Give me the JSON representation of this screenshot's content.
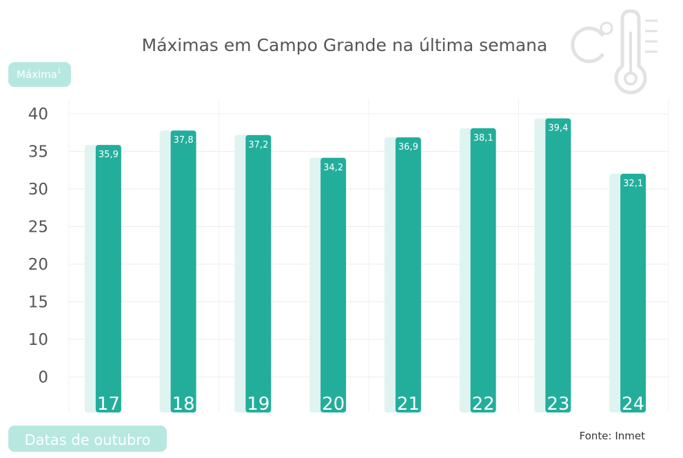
{
  "chart_data": {
    "type": "bar",
    "title": "Máximas em Campo Grande na última semana",
    "ylabel": "Máxima",
    "ylabel_superscript": "1",
    "xlabel": "Datas de outubro",
    "categories": [
      "17",
      "18",
      "19",
      "20",
      "21",
      "22",
      "23",
      "24"
    ],
    "values": [
      35.9,
      37.8,
      37.2,
      34.2,
      36.9,
      38.1,
      39.4,
      32.1
    ],
    "value_labels": [
      "35,9",
      "37,8",
      "37,2",
      "34,2",
      "36,9",
      "38,1",
      "39,4",
      "32,1"
    ],
    "yticks": [
      "40",
      "35",
      "30",
      "25",
      "20",
      "15",
      "10",
      "0"
    ],
    "ylim": [
      0,
      40
    ],
    "grid": true,
    "bar_color": "#23ae9c",
    "shadow_color": "#dff4f1",
    "source": "Fonte: Inmet",
    "icon": "thermometer-celsius-icon"
  }
}
